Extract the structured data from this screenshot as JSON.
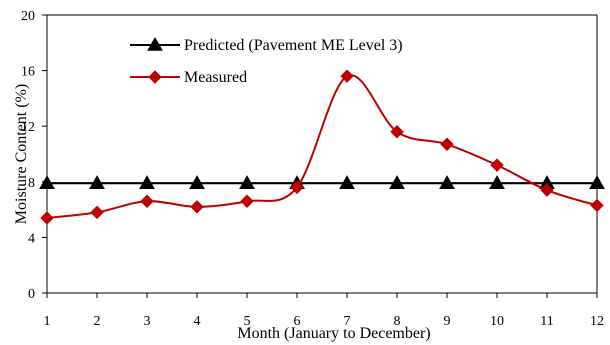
{
  "chart_data": {
    "type": "line",
    "title": "",
    "xlabel": "Month (January to December)",
    "ylabel": "Moisture Content (%)",
    "x": [
      1,
      2,
      3,
      4,
      5,
      6,
      7,
      8,
      9,
      10,
      11,
      12
    ],
    "xlim": [
      1,
      12
    ],
    "ylim": [
      0,
      20
    ],
    "yticks": [
      0,
      4,
      8,
      12,
      16,
      20
    ],
    "grid": false,
    "legend_position": "top-left",
    "series": [
      {
        "name": "Predicted (Pavement ME Level 3)",
        "values": [
          7.9,
          7.9,
          7.9,
          7.9,
          7.9,
          7.9,
          7.9,
          7.9,
          7.9,
          7.9,
          7.9,
          7.9
        ],
        "color": "#000000",
        "marker": "triangle",
        "line": "straight"
      },
      {
        "name": "Measured",
        "values": [
          5.4,
          5.8,
          6.6,
          6.2,
          6.6,
          7.6,
          15.6,
          11.6,
          10.7,
          9.2,
          7.4,
          6.3
        ],
        "color": "#c00000",
        "marker": "diamond",
        "line": "smooth"
      }
    ]
  }
}
